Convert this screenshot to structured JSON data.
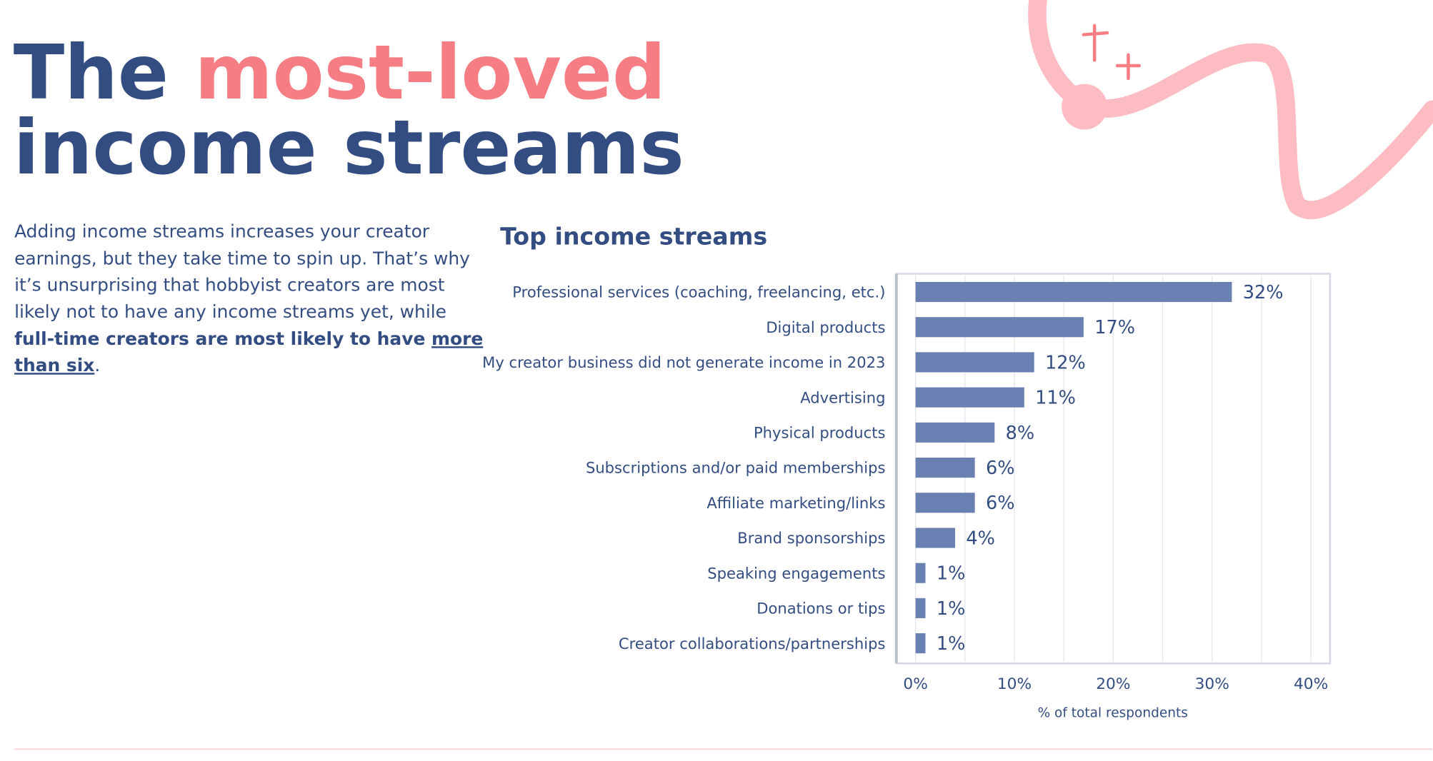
{
  "header": {
    "title_start": "The",
    "title_highlight": "most-loved",
    "title_end": "income streams"
  },
  "body": {
    "lines": [
      "Adding income streams increases your creator",
      "earnings, but they take time to spin up. That’s why",
      "it’s unsurprising that hobbyist creators are most",
      "likely not to have any income streams yet, while"
    ],
    "bold": "full-time creators are most likely to have",
    "link": [
      "more",
      "than six"
    ],
    "end": "."
  },
  "chart_data": {
    "type": "barh",
    "title": "Top income streams",
    "categories": [
      "Professional services (coaching, freelancing, etc.)",
      "Digital products",
      "My creator business did not generate income in 2023",
      "Advertising",
      "Physical products",
      "Subscriptions and/or paid memberships",
      "Affiliate marketing/links",
      "Brand sponsorships",
      "Speaking engagements",
      "Donations or tips",
      "Creator collaborations/partnerships"
    ],
    "values": [
      32,
      17,
      12,
      11,
      8,
      6,
      6,
      4,
      1,
      1,
      1
    ],
    "value_labels": [
      "32%",
      "17%",
      "12%",
      "11%",
      "8%",
      "6%",
      "6%",
      "4%",
      "1%",
      "1%",
      "1%"
    ],
    "color": "#6b80b2",
    "xlim": [
      0,
      40
    ],
    "xticks": [
      {
        "value": 0,
        "label": "0%"
      },
      {
        "value": 10,
        "label": "10%"
      },
      {
        "value": 20,
        "label": "20%"
      },
      {
        "value": 30,
        "label": "30%"
      },
      {
        "value": 40,
        "label": "40%"
      }
    ],
    "minor_xticks": [
      5,
      15,
      25,
      35
    ],
    "grid": true,
    "xlabel": "% of total respondents"
  }
}
